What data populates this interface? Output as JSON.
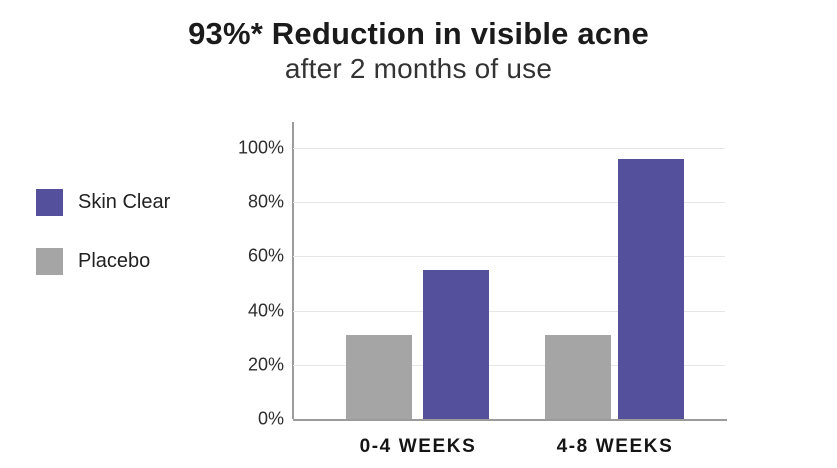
{
  "chart_data": {
    "type": "bar",
    "title": "93%* Reduction in visible acne",
    "subtitle": "after 2 months of use",
    "categories": [
      "0-4 WEEKS",
      "4-8 WEEKS"
    ],
    "series": [
      {
        "name": "Skin Clear",
        "color": "#55509B",
        "values": [
          55,
          96
        ]
      },
      {
        "name": "Placebo",
        "color": "#A5A5A5",
        "values": [
          31,
          31
        ]
      }
    ],
    "xlabel": "",
    "ylabel": "",
    "ylim": [
      0,
      100
    ],
    "yticks": [
      "100%",
      "80%",
      "60%",
      "40%",
      "20%",
      "0%"
    ],
    "grid": true,
    "legend_position": "left",
    "background": "#FFFFFF"
  }
}
